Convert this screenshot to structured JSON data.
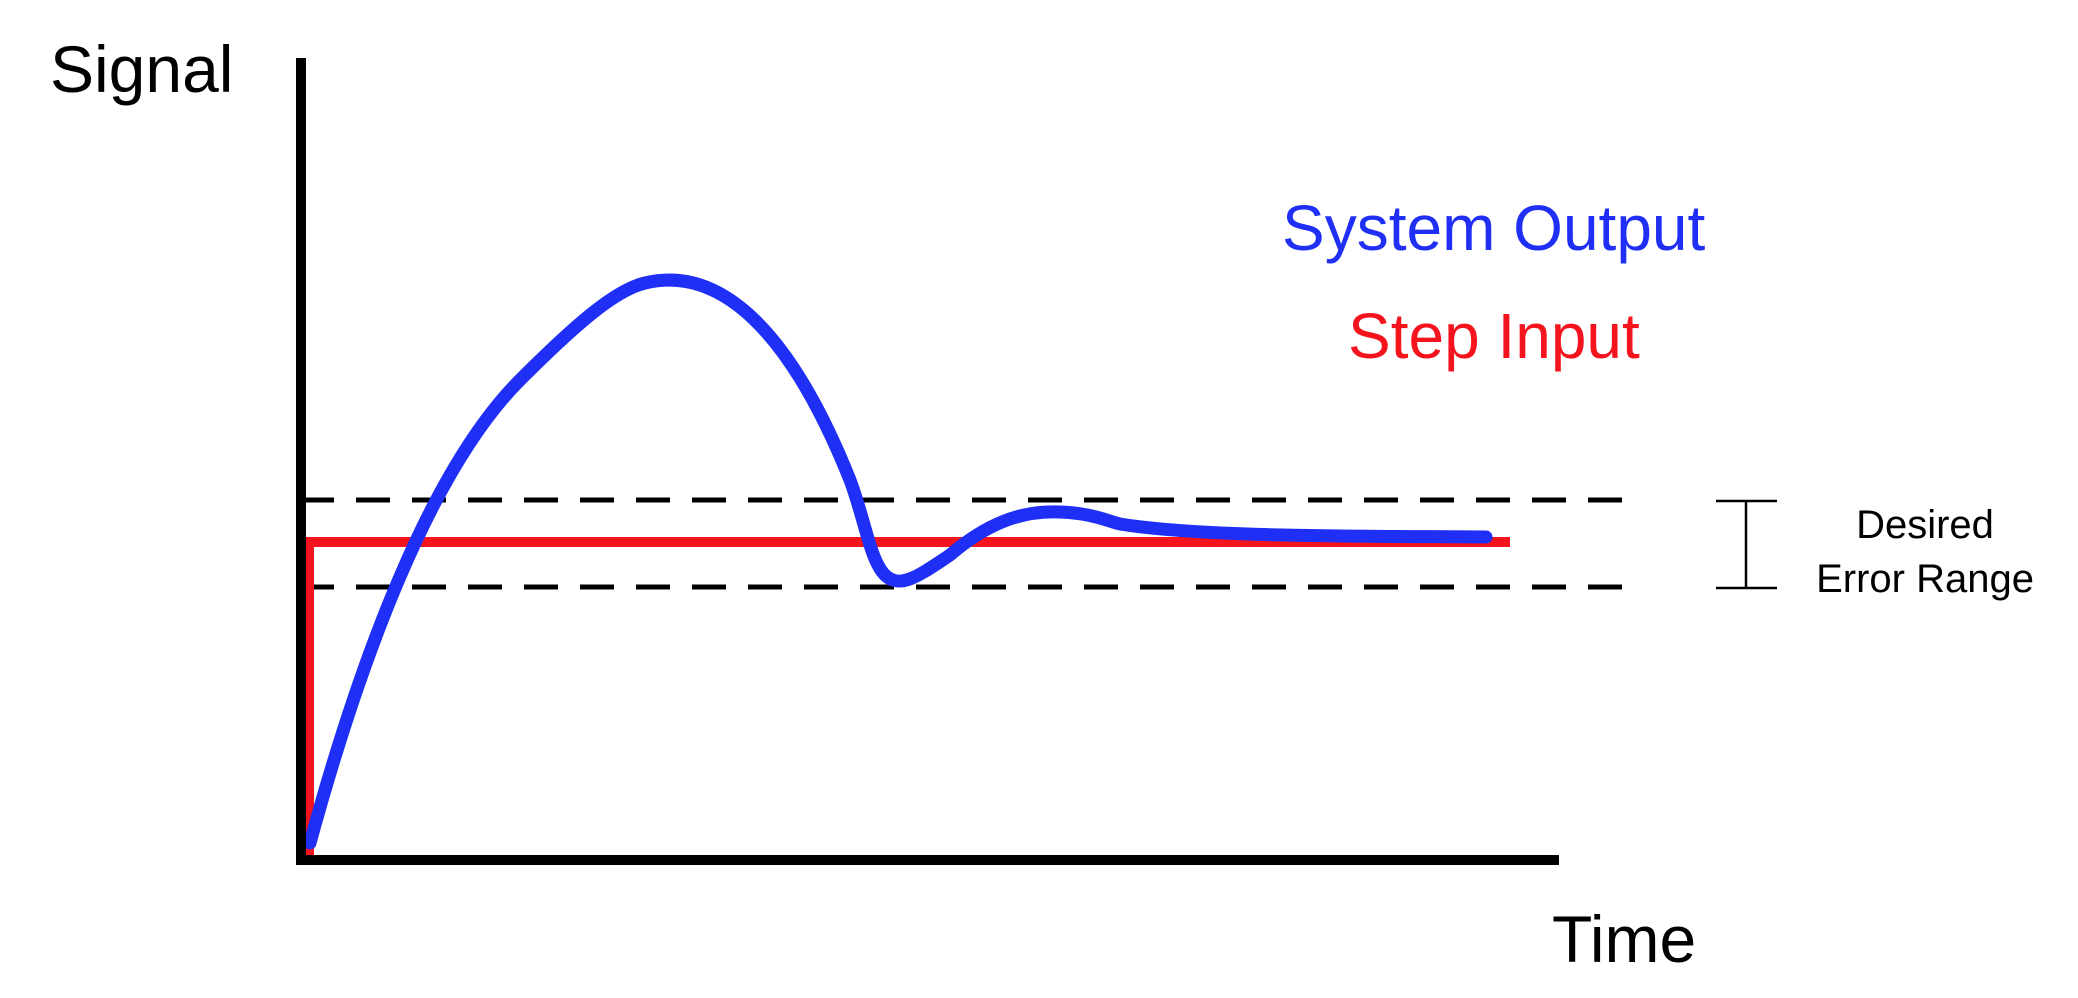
{
  "axes": {
    "y_label": "Signal",
    "x_label": "Time"
  },
  "legend": {
    "system_output": "System Output",
    "step_input": "Step Input"
  },
  "error_range": {
    "line1": "Desired",
    "line2": "Error Range"
  },
  "colors": {
    "system_output": "#1f2ff5",
    "step_input": "#f5141e",
    "axes": "#000000",
    "error_bounds": "#000000"
  }
}
